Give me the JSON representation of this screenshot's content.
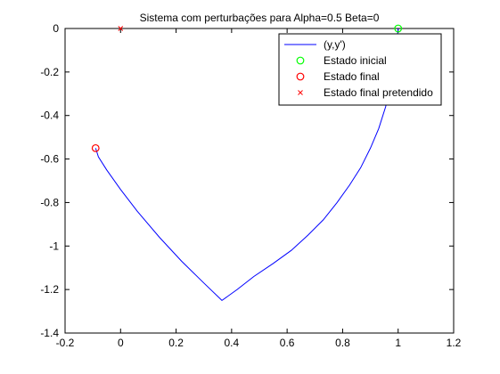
{
  "chart_data": {
    "type": "line",
    "title": "Sistema com perturbações para Alpha=0.5   Beta=0",
    "xlabel": "",
    "ylabel": "",
    "xlim": [
      -0.2,
      1.2
    ],
    "ylim": [
      -1.4,
      0
    ],
    "xticks": [
      -0.2,
      0,
      0.2,
      0.4,
      0.6,
      0.8,
      1,
      1.2
    ],
    "xtick_labels": [
      "-0.2",
      "0",
      "0.2",
      "0.4",
      "0.6",
      "0.8",
      "1",
      "1.2"
    ],
    "yticks": [
      0,
      -0.2,
      -0.4,
      -0.6,
      -0.8,
      -1,
      -1.2,
      -1.4
    ],
    "ytick_labels": [
      "0",
      "-0.2",
      "-0.4",
      "-0.6",
      "-0.8",
      "-1",
      "-1.2",
      "-1.4"
    ],
    "grid": false,
    "legend_position": "top-right",
    "series": [
      {
        "name": "(y,y')",
        "kind": "line",
        "color": "#0000ff",
        "x": [
          1.0,
          0.99,
          0.975,
          0.955,
          0.93,
          0.9,
          0.865,
          0.825,
          0.78,
          0.73,
          0.675,
          0.615,
          0.55,
          0.48,
          0.42,
          0.365,
          0.3,
          0.22,
          0.14,
          0.06,
          0.0,
          -0.05,
          -0.08,
          -0.09
        ],
        "y": [
          0.0,
          -0.13,
          -0.25,
          -0.36,
          -0.46,
          -0.55,
          -0.64,
          -0.72,
          -0.8,
          -0.88,
          -0.95,
          -1.02,
          -1.08,
          -1.14,
          -1.2,
          -1.25,
          -1.17,
          -1.07,
          -0.96,
          -0.84,
          -0.74,
          -0.65,
          -0.59,
          -0.55
        ]
      },
      {
        "name": "Estado inicial",
        "kind": "marker-circle",
        "color": "#00ff00",
        "x": [
          1.0
        ],
        "y": [
          0.0
        ]
      },
      {
        "name": "Estado final",
        "kind": "marker-circle",
        "color": "#ff0000",
        "x": [
          -0.09
        ],
        "y": [
          -0.55
        ]
      },
      {
        "name": "Estado final pretendido",
        "kind": "marker-x",
        "color": "#ff0000",
        "x": [
          0.0
        ],
        "y": [
          0.0
        ]
      }
    ]
  }
}
